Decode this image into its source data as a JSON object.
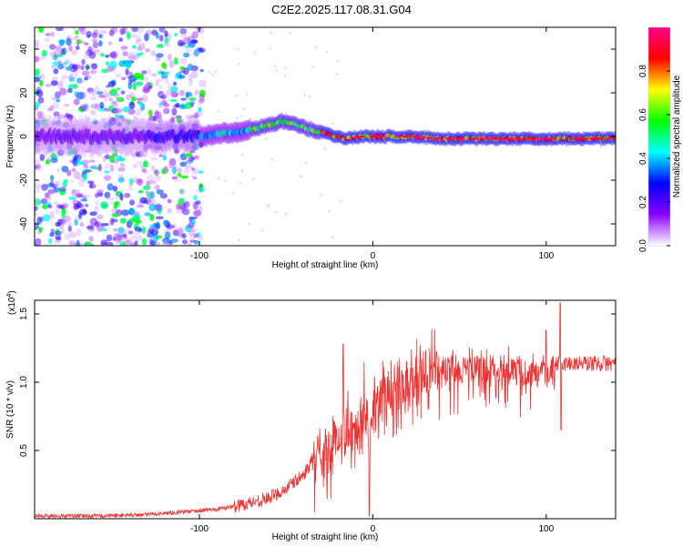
{
  "title": "C2E2.2025.117.08.31.G04",
  "chart_data": [
    {
      "type": "heatmap",
      "panel": "spectrogram",
      "xlabel": "Height of straight line (km)",
      "ylabel": "Frequency (Hz)",
      "xlim": [
        -195,
        140
      ],
      "ylim": [
        -50,
        50
      ],
      "x_ticks": [
        -100,
        0,
        100
      ],
      "x_tick_labels": [
        "-100",
        "0",
        "100"
      ],
      "y_ticks": [
        -40,
        -20,
        0,
        20,
        40
      ],
      "y_tick_labels": [
        "-40",
        "-20",
        "0",
        "20",
        "40"
      ],
      "colorbar": {
        "label": "Normalized spectral amplitude",
        "range": [
          0,
          1
        ],
        "ticks": [
          0.0,
          0.2,
          0.4,
          0.6,
          0.8
        ],
        "tick_labels": [
          "0.0",
          "0.2",
          "0.4",
          "0.6",
          "0.8"
        ],
        "colors": [
          "#ffffff",
          "#8800ff",
          "#0000ff",
          "#00ffff",
          "#00ff00",
          "#ffff00",
          "#ff0000",
          "#ff0088"
        ]
      },
      "ridge": {
        "description_x": [
          -195,
          -130,
          -100,
          -80,
          -65,
          -52,
          -45,
          -35,
          -25,
          -15,
          -5,
          0,
          10,
          20,
          40,
          60,
          80,
          100,
          120,
          140
        ],
        "frequency_hz": [
          0,
          0,
          0,
          2,
          4,
          7,
          6,
          3,
          1,
          -1,
          0,
          0,
          0,
          0,
          -1,
          -1,
          -1,
          -1,
          -1,
          -1
        ]
      }
    },
    {
      "type": "line",
      "panel": "snr",
      "xlabel": "Height of straight line (km)",
      "ylabel": "SNR (10 * v/v)",
      "scale_label_prefix": "(x10",
      "scale_label_exp": "4",
      "scale_label_suffix": ")",
      "xlim": [
        -195,
        140
      ],
      "ylim": [
        0,
        1.6
      ],
      "x_ticks": [
        -100,
        0,
        100
      ],
      "x_tick_labels": [
        "-100",
        "0",
        "100"
      ],
      "y_ticks": [
        0.5,
        1.0,
        1.5
      ],
      "y_tick_labels": [
        "0.5",
        "1.0",
        "1.5"
      ],
      "series": [
        {
          "name": "SNR",
          "color": "#ee3333",
          "x": [
            -195,
            -160,
            -130,
            -110,
            -90,
            -80,
            -70,
            -60,
            -50,
            -40,
            -35,
            -30,
            -25,
            -20,
            -15,
            -10,
            -5,
            0,
            5,
            10,
            20,
            30,
            40,
            50,
            60,
            70,
            80,
            90,
            95,
            100,
            105,
            108,
            110,
            115,
            120,
            130,
            140
          ],
          "y": [
            0.02,
            0.02,
            0.03,
            0.05,
            0.07,
            0.09,
            0.12,
            0.15,
            0.22,
            0.32,
            0.42,
            0.5,
            0.55,
            0.62,
            0.68,
            0.72,
            0.78,
            0.82,
            0.9,
            0.98,
            1.05,
            1.1,
            1.13,
            1.15,
            1.15,
            1.15,
            1.14,
            1.12,
            1.1,
            1.1,
            1.15,
            1.15,
            1.15,
            1.15,
            1.15,
            1.15,
            1.15
          ],
          "peaks": [
            {
              "x": -17,
              "y": 1.28
            },
            {
              "x": -5,
              "y": 1.15
            },
            {
              "x": -2,
              "y": 0.02
            },
            {
              "x": 100,
              "y": 1.38
            },
            {
              "x": 108,
              "y": 1.58
            },
            {
              "x": 108.5,
              "y": 0.65
            }
          ]
        }
      ]
    }
  ]
}
